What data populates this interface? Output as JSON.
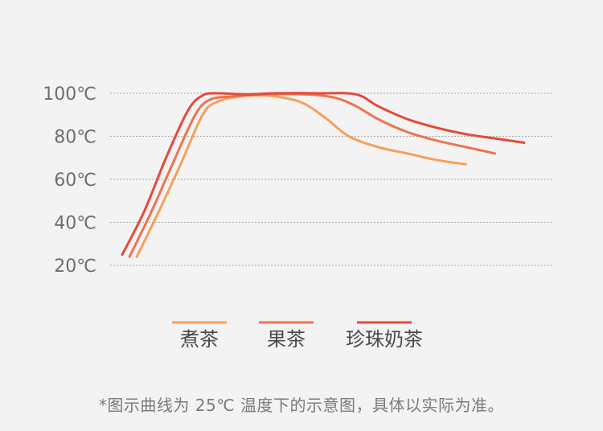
{
  "chart_data": {
    "type": "line",
    "ylim": [
      20,
      100
    ],
    "yticks": [
      "100℃",
      "80℃",
      "60℃",
      "40℃",
      "20℃"
    ],
    "ytick_values": [
      100,
      80,
      60,
      40,
      20
    ],
    "grid": true,
    "legend_position": "bottom",
    "series": [
      {
        "name": "煮茶",
        "color": "#f5a05a",
        "points": [
          [
            0.5,
            24
          ],
          [
            2,
            45
          ],
          [
            3.5,
            67
          ],
          [
            5,
            90
          ],
          [
            6,
            96
          ],
          [
            7.5,
            98.5
          ],
          [
            9,
            99
          ],
          [
            10.5,
            98
          ],
          [
            12,
            95
          ],
          [
            13.5,
            88
          ],
          [
            15,
            80
          ],
          [
            17,
            75
          ],
          [
            19,
            72
          ],
          [
            21,
            69
          ],
          [
            23,
            67
          ]
        ]
      },
      {
        "name": "果茶",
        "color": "#ee7350",
        "points": [
          [
            0,
            24
          ],
          [
            1.5,
            45
          ],
          [
            3,
            68
          ],
          [
            4.5,
            90
          ],
          [
            5.5,
            97
          ],
          [
            7,
            98.5
          ],
          [
            9,
            99.5
          ],
          [
            12,
            99.5
          ],
          [
            14,
            98
          ],
          [
            15.5,
            94
          ],
          [
            17,
            88
          ],
          [
            19,
            82
          ],
          [
            21,
            78
          ],
          [
            23,
            75
          ],
          [
            25,
            72
          ]
        ]
      },
      {
        "name": "珍珠奶茶",
        "color": "#e4493a",
        "points": [
          [
            -0.5,
            25
          ],
          [
            1,
            45
          ],
          [
            2.5,
            70
          ],
          [
            4,
            92
          ],
          [
            5,
            99
          ],
          [
            6,
            100
          ],
          [
            8,
            99.5
          ],
          [
            10,
            100
          ],
          [
            13,
            100
          ],
          [
            15.5,
            99.5
          ],
          [
            17,
            94
          ],
          [
            19,
            88
          ],
          [
            21,
            84
          ],
          [
            23,
            81
          ],
          [
            25,
            79
          ],
          [
            27,
            77
          ]
        ]
      }
    ]
  },
  "footnote": "*图示曲线为 25℃ 温度下的示意图，具体以实际为准。"
}
